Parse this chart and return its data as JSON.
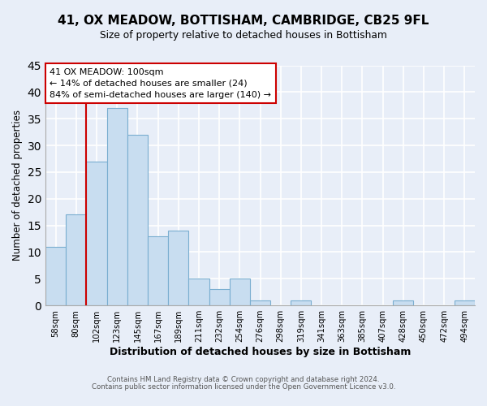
{
  "title": "41, OX MEADOW, BOTTISHAM, CAMBRIDGE, CB25 9FL",
  "subtitle": "Size of property relative to detached houses in Bottisham",
  "xlabel": "Distribution of detached houses by size in Bottisham",
  "ylabel": "Number of detached properties",
  "bin_labels": [
    "58sqm",
    "80sqm",
    "102sqm",
    "123sqm",
    "145sqm",
    "167sqm",
    "189sqm",
    "211sqm",
    "232sqm",
    "254sqm",
    "276sqm",
    "298sqm",
    "319sqm",
    "341sqm",
    "363sqm",
    "385sqm",
    "407sqm",
    "428sqm",
    "450sqm",
    "472sqm",
    "494sqm"
  ],
  "bar_heights": [
    11,
    17,
    27,
    37,
    32,
    13,
    14,
    5,
    3,
    5,
    1,
    0,
    1,
    0,
    0,
    0,
    0,
    1,
    0,
    0,
    1
  ],
  "bar_color": "#c8ddf0",
  "bar_edge_color": "#7aaed0",
  "highlight_line_color": "#cc0000",
  "ylim": [
    0,
    45
  ],
  "yticks": [
    0,
    5,
    10,
    15,
    20,
    25,
    30,
    35,
    40,
    45
  ],
  "annotation_box_text": "41 OX MEADOW: 100sqm\n← 14% of detached houses are smaller (24)\n84% of semi-detached houses are larger (140) →",
  "annotation_box_color": "#ffffff",
  "annotation_box_edge_color": "#cc0000",
  "footer_line1": "Contains HM Land Registry data © Crown copyright and database right 2024.",
  "footer_line2": "Contains public sector information licensed under the Open Government Licence v3.0.",
  "background_color": "#e8eef8",
  "plot_bg_color": "#e8eef8",
  "grid_color": "#ffffff"
}
